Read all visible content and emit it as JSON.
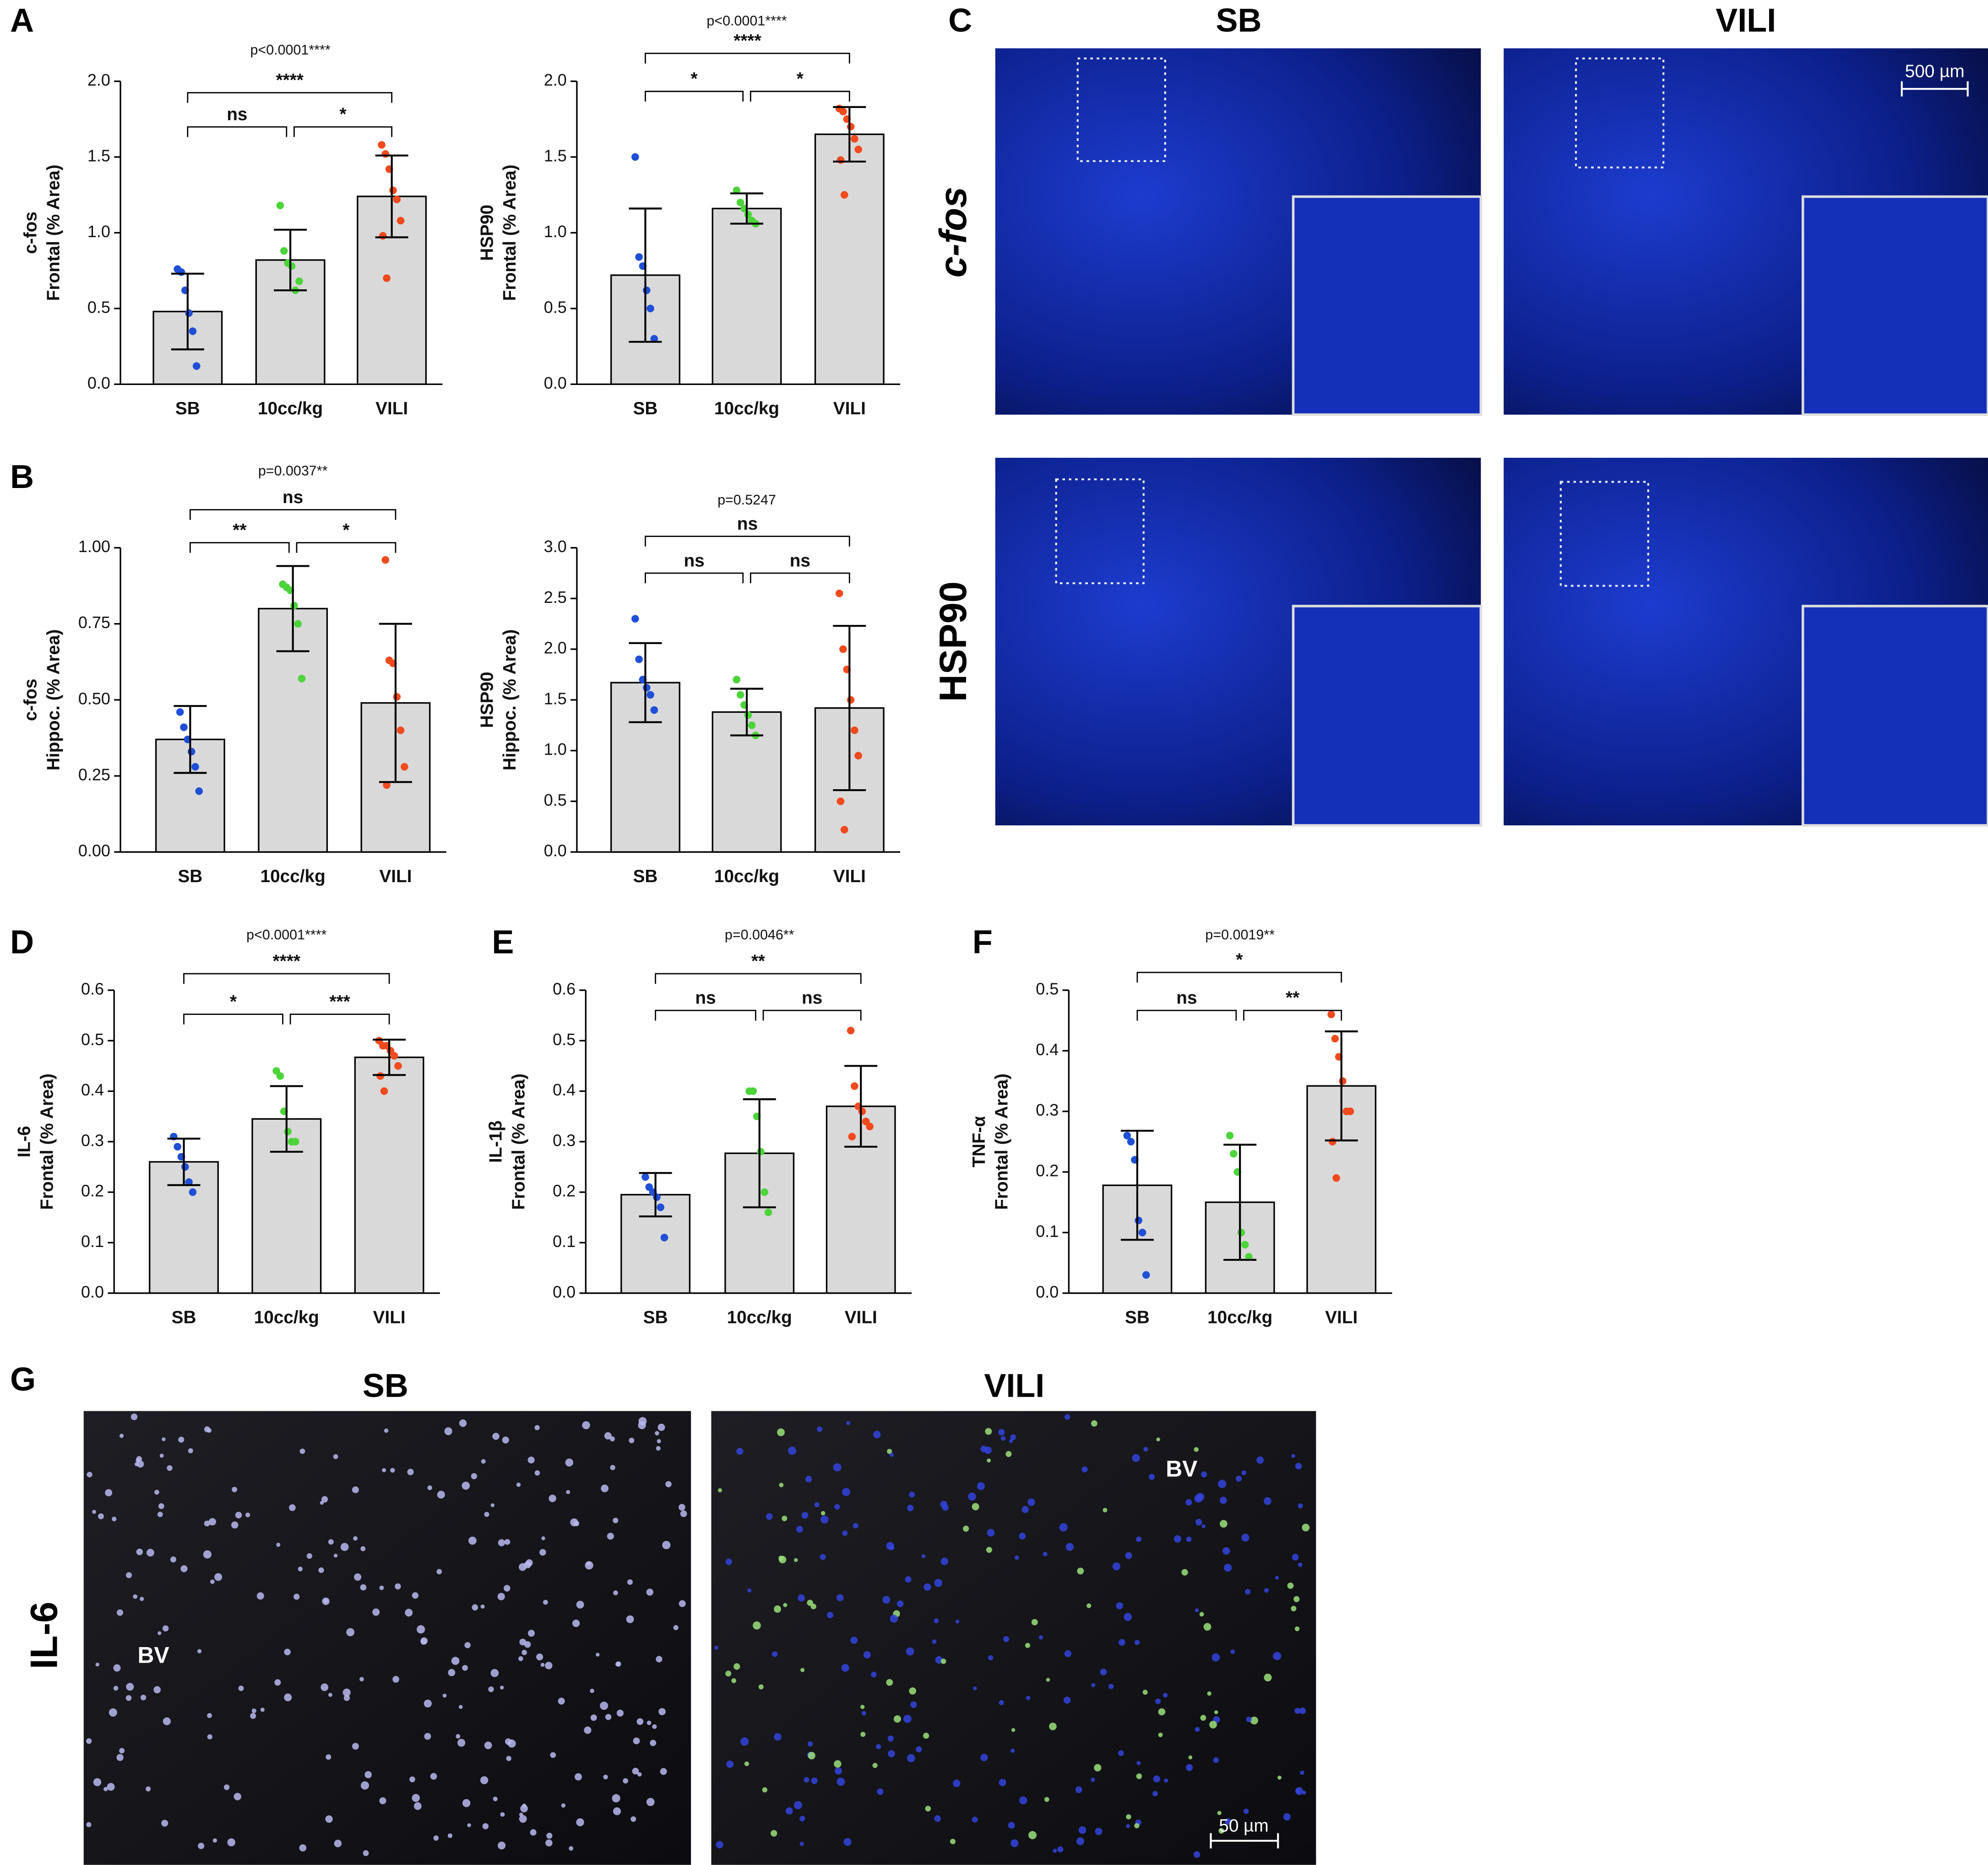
{
  "panel_labels": [
    "A",
    "B",
    "C",
    "D",
    "E",
    "F",
    "G"
  ],
  "micrographs": {
    "c": {
      "columns": [
        "SB",
        "VILI"
      ],
      "rows": [
        "c-fos",
        "HSP90"
      ],
      "scale_bar": "500 µm"
    },
    "g": {
      "columns": [
        "SB",
        "VILI"
      ],
      "row": "IL-6",
      "annotations": [
        "BV",
        "BV"
      ],
      "scale_bar": "50 µm"
    }
  },
  "chart_data": [
    {
      "type": "bar",
      "ylabel": [
        "c-fos",
        "Frontal (% Area)"
      ],
      "categories": [
        "SB",
        "10cc/kg",
        "VILI"
      ],
      "values": [
        0.48,
        0.82,
        1.24
      ],
      "errors": [
        0.25,
        0.2,
        0.27
      ],
      "color": "#d9d9d9",
      "point_colors": [
        "#1f4fd6",
        "#4cd43a",
        "#f04a1e"
      ],
      "points": [
        [
          0.76,
          0.74,
          0.62,
          0.47,
          0.35,
          0.12
        ],
        [
          1.18,
          0.88,
          0.8,
          0.78,
          0.62,
          0.68
        ],
        [
          1.58,
          1.52,
          1.42,
          1.28,
          1.22,
          1.08,
          0.98,
          0.7
        ]
      ],
      "ylim": [
        0,
        2
      ],
      "yticks": [
        {
          "value": 0,
          "label": "0.0"
        },
        {
          "value": 0.5,
          "label": "0.5"
        },
        {
          "value": 1,
          "label": "1.0"
        },
        {
          "value": 1.5,
          "label": "1.5"
        },
        {
          "value": 2,
          "label": "2.0"
        }
      ],
      "p_value": "p<0.0001****",
      "significance": {
        "first_second": "ns",
        "second_third": "*",
        "first_third": "****"
      }
    },
    {
      "type": "bar",
      "ylabel": [
        "HSP90",
        "Frontal (% Area)"
      ],
      "categories": [
        "SB",
        "10cc/kg",
        "VILI"
      ],
      "values": [
        0.72,
        1.16,
        1.65
      ],
      "errors": [
        0.44,
        0.1,
        0.18
      ],
      "color": "#d9d9d9",
      "point_colors": [
        "#1f4fd6",
        "#4cd43a",
        "#f04a1e"
      ],
      "points": [
        [
          1.5,
          0.84,
          0.78,
          0.62,
          0.5,
          0.3
        ],
        [
          1.28,
          1.2,
          1.16,
          1.12,
          1.08,
          1.06
        ],
        [
          1.82,
          1.8,
          1.75,
          1.7,
          1.62,
          1.55,
          1.48,
          1.25
        ]
      ],
      "ylim": [
        0,
        2
      ],
      "yticks": [
        {
          "value": 0,
          "label": "0.0"
        },
        {
          "value": 0.5,
          "label": "0.5"
        },
        {
          "value": 1,
          "label": "1.0"
        },
        {
          "value": 1.5,
          "label": "1.5"
        },
        {
          "value": 2,
          "label": "2.0"
        }
      ],
      "p_value": "p<0.0001****",
      "significance": {
        "first_second": "*",
        "second_third": "*",
        "first_third": "****"
      }
    },
    {
      "type": "bar",
      "ylabel": [
        "c-fos",
        "Hippoc. (% Area)"
      ],
      "categories": [
        "SB",
        "10cc/kg",
        "VILI"
      ],
      "values": [
        0.37,
        0.8,
        0.49
      ],
      "errors": [
        0.11,
        0.14,
        0.26
      ],
      "color": "#d9d9d9",
      "point_colors": [
        "#1f4fd6",
        "#4cd43a",
        "#f04a1e"
      ],
      "points": [
        [
          0.46,
          0.41,
          0.37,
          0.33,
          0.28,
          0.2
        ],
        [
          0.88,
          0.87,
          0.86,
          0.81,
          0.75,
          0.57
        ],
        [
          0.96,
          0.63,
          0.62,
          0.51,
          0.4,
          0.28,
          0.22
        ]
      ],
      "ylim": [
        0,
        1
      ],
      "yticks": [
        {
          "value": 0,
          "label": "0.00"
        },
        {
          "value": 0.25,
          "label": "0.25"
        },
        {
          "value": 0.5,
          "label": "0.50"
        },
        {
          "value": 0.75,
          "label": "0.75"
        },
        {
          "value": 1,
          "label": "1.00"
        }
      ],
      "p_value": "p=0.0037**",
      "significance": {
        "first_second": "**",
        "second_third": "*",
        "first_third": "ns"
      }
    },
    {
      "type": "bar",
      "ylabel": [
        "HSP90",
        "Hippoc. (% Area)"
      ],
      "categories": [
        "SB",
        "10cc/kg",
        "VILI"
      ],
      "values": [
        1.67,
        1.38,
        1.42
      ],
      "errors": [
        0.39,
        0.23,
        0.81
      ],
      "color": "#d9d9d9",
      "point_colors": [
        "#1f4fd6",
        "#4cd43a",
        "#f04a1e"
      ],
      "points": [
        [
          2.3,
          1.9,
          1.7,
          1.62,
          1.55,
          1.4
        ],
        [
          1.7,
          1.55,
          1.45,
          1.35,
          1.25,
          1.15
        ],
        [
          2.55,
          2.0,
          1.8,
          1.5,
          1.2,
          0.95,
          0.5,
          0.22
        ]
      ],
      "ylim": [
        0,
        3
      ],
      "yticks": [
        {
          "value": 0,
          "label": "0.0"
        },
        {
          "value": 0.5,
          "label": "0.5"
        },
        {
          "value": 1,
          "label": "1.0"
        },
        {
          "value": 1.5,
          "label": "1.5"
        },
        {
          "value": 2,
          "label": "2.0"
        },
        {
          "value": 2.5,
          "label": "2.5"
        },
        {
          "value": 3,
          "label": "3.0"
        }
      ],
      "p_value": "p=0.5247",
      "significance": {
        "first_second": "ns",
        "second_third": "ns",
        "first_third": "ns"
      }
    },
    {
      "type": "bar",
      "ylabel": [
        "IL-6",
        "Frontal (% Area)"
      ],
      "categories": [
        "SB",
        "10cc/kg",
        "VILI"
      ],
      "values": [
        0.26,
        0.345,
        0.467
      ],
      "errors": [
        0.046,
        0.065,
        0.035
      ],
      "color": "#d9d9d9",
      "point_colors": [
        "#1f4fd6",
        "#4cd43a",
        "#f04a1e"
      ],
      "points": [
        [
          0.31,
          0.29,
          0.27,
          0.25,
          0.22,
          0.2
        ],
        [
          0.44,
          0.43,
          0.36,
          0.32,
          0.3,
          0.3
        ],
        [
          0.5,
          0.49,
          0.49,
          0.48,
          0.47,
          0.45,
          0.43,
          0.4
        ]
      ],
      "ylim": [
        0,
        0.6
      ],
      "yticks": [
        {
          "value": 0,
          "label": "0.0"
        },
        {
          "value": 0.1,
          "label": "0.1"
        },
        {
          "value": 0.2,
          "label": "0.2"
        },
        {
          "value": 0.3,
          "label": "0.3"
        },
        {
          "value": 0.4,
          "label": "0.4"
        },
        {
          "value": 0.5,
          "label": "0.5"
        },
        {
          "value": 0.6,
          "label": "0.6"
        }
      ],
      "p_value": "p<0.0001****",
      "significance": {
        "first_second": "*",
        "second_third": "***",
        "first_third": "****"
      }
    },
    {
      "type": "bar",
      "ylabel": [
        "IL-1β",
        "Frontal (% Area)"
      ],
      "categories": [
        "SB",
        "10cc/kg",
        "VILI"
      ],
      "values": [
        0.195,
        0.277,
        0.37
      ],
      "errors": [
        0.043,
        0.107,
        0.08
      ],
      "color": "#d9d9d9",
      "point_colors": [
        "#1f4fd6",
        "#4cd43a",
        "#f04a1e"
      ],
      "points": [
        [
          0.23,
          0.21,
          0.2,
          0.19,
          0.17,
          0.11
        ],
        [
          0.4,
          0.4,
          0.35,
          0.28,
          0.2,
          0.16
        ],
        [
          0.52,
          0.41,
          0.37,
          0.36,
          0.34,
          0.33,
          0.31
        ]
      ],
      "ylim": [
        0,
        0.6
      ],
      "yticks": [
        {
          "value": 0,
          "label": "0.0"
        },
        {
          "value": 0.1,
          "label": "0.1"
        },
        {
          "value": 0.2,
          "label": "0.2"
        },
        {
          "value": 0.3,
          "label": "0.3"
        },
        {
          "value": 0.4,
          "label": "0.4"
        },
        {
          "value": 0.5,
          "label": "0.5"
        },
        {
          "value": 0.6,
          "label": "0.6"
        }
      ],
      "p_value": "p=0.0046**",
      "significance": {
        "first_second": "ns",
        "second_third": "ns",
        "first_third": "**"
      }
    },
    {
      "type": "bar",
      "ylabel": [
        "TNF-α",
        "Frontal (% Area)"
      ],
      "categories": [
        "SB",
        "10cc/kg",
        "VILI"
      ],
      "values": [
        0.178,
        0.15,
        0.342
      ],
      "errors": [
        0.09,
        0.095,
        0.09
      ],
      "color": "#d9d9d9",
      "point_colors": [
        "#1f4fd6",
        "#4cd43a",
        "#f04a1e"
      ],
      "points": [
        [
          0.26,
          0.25,
          0.22,
          0.12,
          0.1,
          0.03
        ],
        [
          0.26,
          0.23,
          0.2,
          0.1,
          0.08,
          0.06
        ],
        [
          0.46,
          0.42,
          0.39,
          0.35,
          0.3,
          0.3,
          0.25,
          0.19
        ]
      ],
      "ylim": [
        0,
        0.5
      ],
      "yticks": [
        {
          "value": 0,
          "label": "0.0"
        },
        {
          "value": 0.1,
          "label": "0.1"
        },
        {
          "value": 0.2,
          "label": "0.2"
        },
        {
          "value": 0.3,
          "label": "0.3"
        },
        {
          "value": 0.4,
          "label": "0.4"
        },
        {
          "value": 0.5,
          "label": "0.5"
        }
      ],
      "p_value": "p=0.0019**",
      "significance": {
        "first_second": "ns",
        "second_third": "**",
        "first_third": "*"
      }
    }
  ]
}
